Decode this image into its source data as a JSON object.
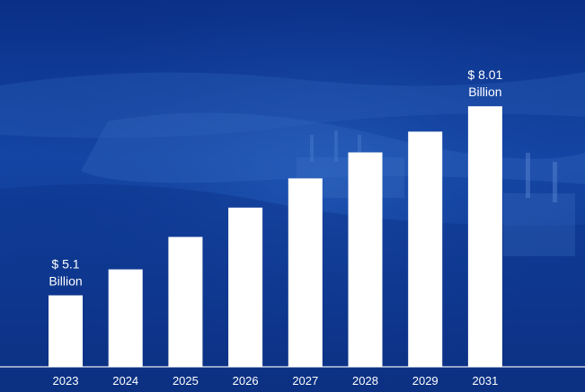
{
  "colors": {
    "background": "#1446a6",
    "bar": "#ffffff",
    "text": "#ffffff"
  },
  "chart_data": {
    "type": "bar",
    "title": "",
    "xlabel": "",
    "ylabel": "",
    "categories": [
      "2023",
      "2024",
      "2025",
      "2026",
      "2027",
      "2028",
      "2029",
      "2031"
    ],
    "values": [
      5.1,
      5.5,
      6.0,
      6.45,
      6.9,
      7.3,
      7.62,
      8.01
    ],
    "ylim": [
      4.0,
      8.4
    ],
    "grid": false,
    "legend": "none",
    "annotations": [
      {
        "category": "2023",
        "line1": "$ 5.1",
        "line2": "Billion"
      },
      {
        "category": "2031",
        "line1": "$ 8.01",
        "line2": "Billion"
      }
    ]
  }
}
